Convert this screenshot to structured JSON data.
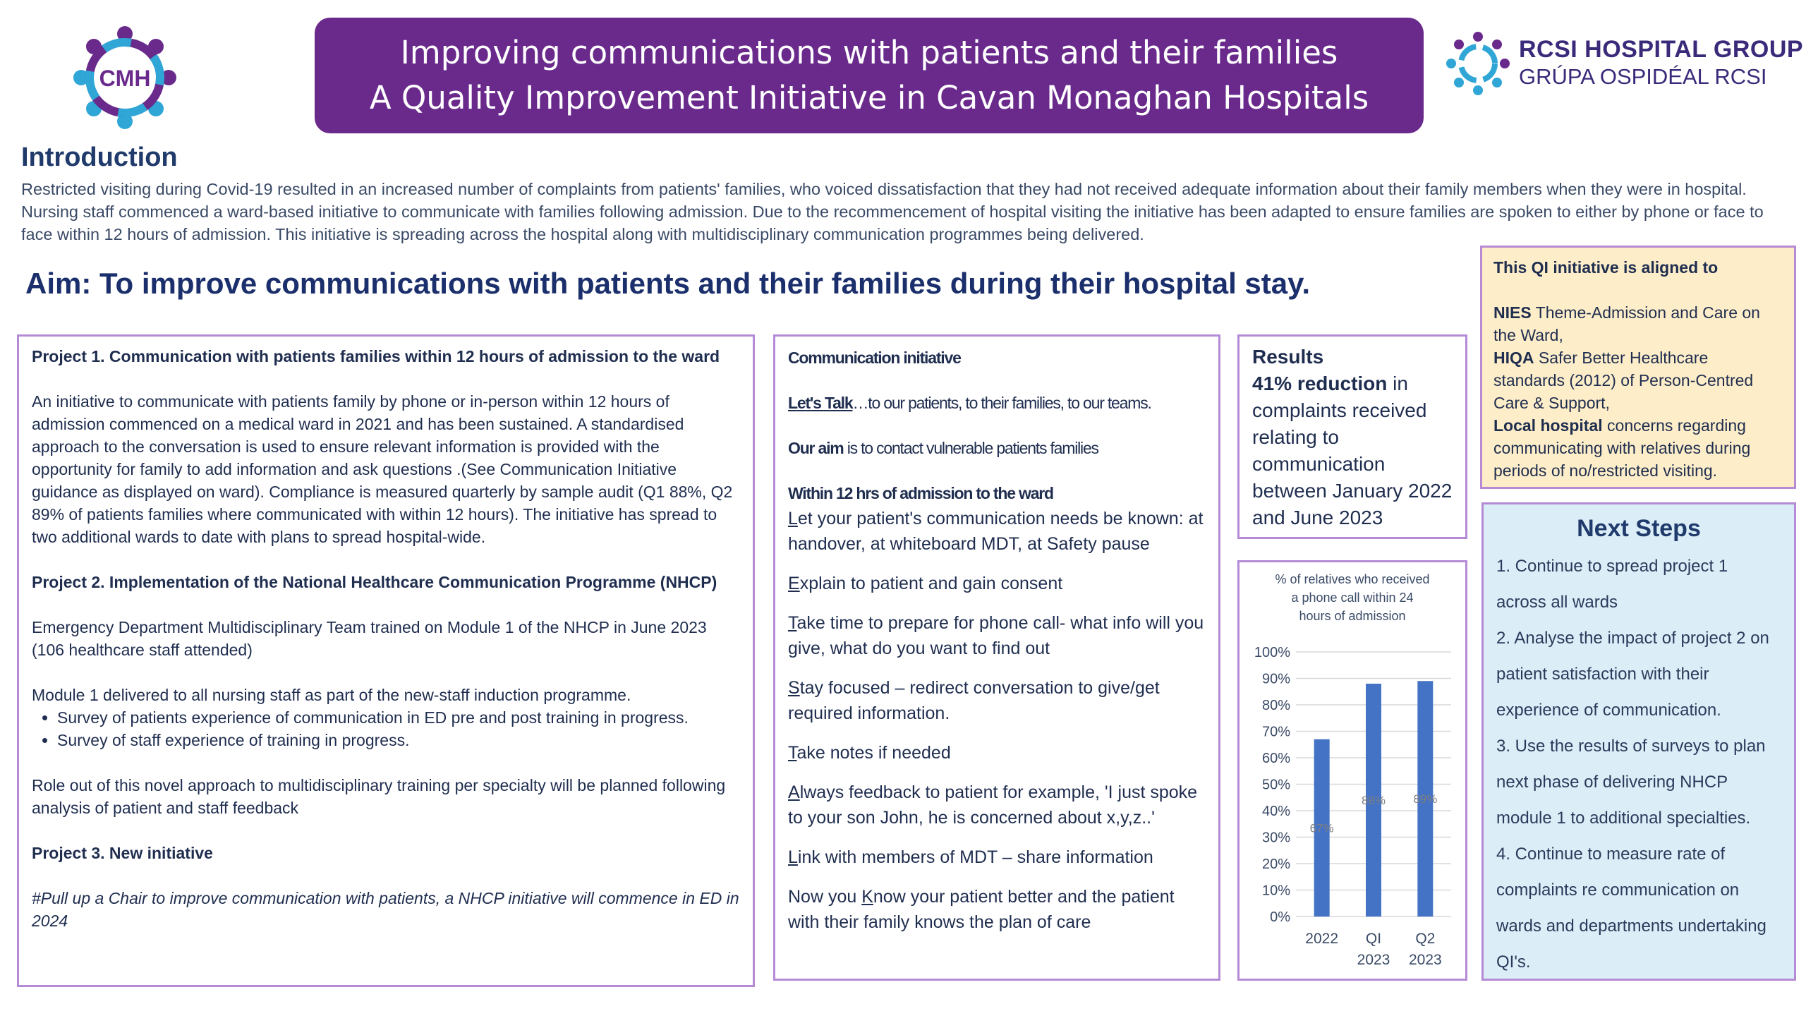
{
  "banner": {
    "line1": "Improving communications with patients and their families",
    "line2": "A Quality Improvement Initiative in Cavan Monaghan Hospitals"
  },
  "logo_left": {
    "letters": "CMH"
  },
  "logo_right": {
    "line1": "RCSI HOSPITAL GROUP",
    "line2": "GRÚPA OSPIDÉAL RCSI"
  },
  "introduction": {
    "heading": "Introduction",
    "text": "Restricted visiting during Covid-19 resulted in an increased number of complaints from patients' families, who voiced dissatisfaction that they had not received adequate information about their family members when they were in hospital. Nursing staff commenced a ward-based initiative to communicate with families following admission. Due to the recommencement of hospital visiting  the initiative has been adapted to ensure families are spoken to either by phone or face to face within 12 hours of admission. This initiative is spreading across the hospital along with multidisciplinary communication programmes being delivered."
  },
  "aim": "Aim:  To improve communications with patients and their families during their hospital stay.",
  "ql_box": {
    "title": "This QI initiative is aligned to",
    "nies_bold": "NIES",
    "nies_text": " Theme-Admission and Care on the Ward,",
    "hiqa_bold": "HIQA",
    "hiqa_text": " Safer Better Healthcare standards (2012) of Person-Centred Care & Support,",
    "local_bold": "Local hospital",
    "local_text": " concerns regarding communicating with relatives during periods of no/restricted visiting."
  },
  "projects": {
    "p1_heading": "Project 1. Communication with patients families within 12 hours of admission to the ward",
    "p1_text": "An initiative to communicate with patients family by phone or in-person within 12 hours of admission commenced on a medical ward in 2021 and has been sustained. A standardised approach to the conversation is used to ensure relevant information is provided with the opportunity for family to add information and ask questions .(See Communication Initiative guidance as displayed on ward). Compliance is measured quarterly by sample audit (Q1 88%, Q2 89% of patients families where communicated with within 12 hours). The initiative has spread to two additional wards to date with plans to spread hospital-wide.",
    "p2_heading": "Project 2. Implementation of the National Healthcare Communication Programme (NHCP)",
    "p2_text1": "Emergency Department Multidisciplinary Team trained on Module 1 of the NHCP in  June 2023",
    "p2_text2": "(106 healthcare staff attended)",
    "p2_text3": "Module 1 delivered to all nursing staff as part of the new-staff induction programme.",
    "p2_bullets": [
      "Survey of patients experience of  communication in ED pre and post training in progress.",
      "Survey of staff experience of training in progress."
    ],
    "p2_text4": "Role out of this novel approach to multidisciplinary training per specialty will be planned following analysis of patient and staff feedback",
    "p3_heading": "Project 3. New initiative",
    "p3_text": "#Pull up a Chair to improve communication with patients, a NHCP initiative will commence in ED in 2024"
  },
  "comm": {
    "heading": "Communication initiative",
    "lets_talk": "Let's Talk",
    "lets_talk_rest": "…to our patients, to their families, to our teams.",
    "our_aim": "Our aim",
    "our_aim_rest": " is to contact vulnerable patients families",
    "within": "Within 12 hrs of admission to the ward",
    "items": [
      {
        "first": "L",
        "rest": "et your patient's communication needs be known: at handover, at whiteboard MDT, at Safety pause"
      },
      {
        "first": "E",
        "rest": "xplain to patient and gain consent"
      },
      {
        "first": "T",
        "rest": "ake time to prepare for phone call- what info will you give, what do you want to find out"
      },
      {
        "first": "S",
        "rest": "tay focused – redirect conversation to give/get required information."
      },
      {
        "first": "T",
        "rest": "ake notes if needed"
      },
      {
        "first": "A",
        "rest": "lways feedback to patient for example, 'I just spoke to your son John, he is concerned about x,y,z..'"
      },
      {
        "first": "L",
        "rest": "ink with members of MDT – share information"
      }
    ],
    "last_pre": "Now you ",
    "last_k": "K",
    "last_post": "now your patient better and the patient with their family knows the plan of care"
  },
  "results": {
    "heading": "Results",
    "bold": "41% reduction",
    "text": " in complaints received relating to communication between January 2022 and June 2023"
  },
  "chart_data": {
    "type": "bar",
    "title": "% of relatives who received a phone call within 24 hours of admission",
    "title_lines": [
      "% of relatives who received",
      "a phone call within 24",
      "hours of admission"
    ],
    "categories": [
      [
        "2022"
      ],
      [
        "QI",
        "2023"
      ],
      [
        "Q2",
        "2023"
      ]
    ],
    "values": [
      67,
      88,
      89
    ],
    "data_labels": [
      "67%",
      "88%",
      "89%"
    ],
    "ylim": [
      0,
      100
    ],
    "yticks": [
      "0%",
      "10%",
      "20%",
      "30%",
      "40%",
      "50%",
      "60%",
      "70%",
      "80%",
      "90%",
      "100%"
    ],
    "grid": true,
    "bar_color": "#4472c4"
  },
  "next_steps": {
    "heading": "Next Steps",
    "items": [
      "1. Continue to spread project 1 across all wards",
      "2. Analyse the impact of project 2 on patient satisfaction with their experience of communication.",
      "3. Use the results of  surveys to plan next phase of delivering NHCP module 1 to additional specialties.",
      "4. Continue to measure rate of complaints re communication on wards and departments undertaking QI's."
    ]
  }
}
